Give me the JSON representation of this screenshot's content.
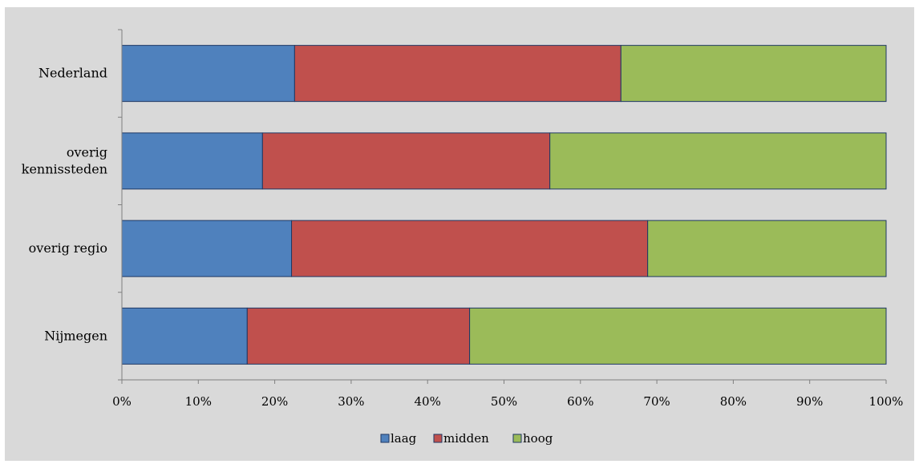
{
  "chart_data": {
    "type": "bar",
    "orientation": "horizontal",
    "stacked": "percent",
    "categories": [
      "Nederland",
      "overig kennissteden",
      "overig regio",
      "Nijmegen"
    ],
    "category_lines": [
      [
        "Nederland"
      ],
      [
        "overig",
        "kennissteden"
      ],
      [
        "overig regio"
      ],
      [
        "Nijmegen"
      ]
    ],
    "series": [
      {
        "name": "laag",
        "color": "#4f81bd",
        "values": [
          22.6,
          18.4,
          22.2,
          16.4
        ]
      },
      {
        "name": "midden",
        "color": "#c0504d",
        "values": [
          42.7,
          37.6,
          46.6,
          29.1
        ]
      },
      {
        "name": "hoog",
        "color": "#9bbb59",
        "values": [
          34.7,
          44.0,
          31.2,
          54.5
        ]
      }
    ],
    "xlim": [
      0,
      100
    ],
    "xticks": [
      "0%",
      "10%",
      "20%",
      "30%",
      "40%",
      "50%",
      "60%",
      "70%",
      "80%",
      "90%",
      "100%"
    ],
    "title": "",
    "xlabel": "",
    "ylabel": "",
    "grid": false,
    "legend_position": "bottom",
    "background": "#d9d9d9",
    "bar_outline": "#1f3864"
  }
}
